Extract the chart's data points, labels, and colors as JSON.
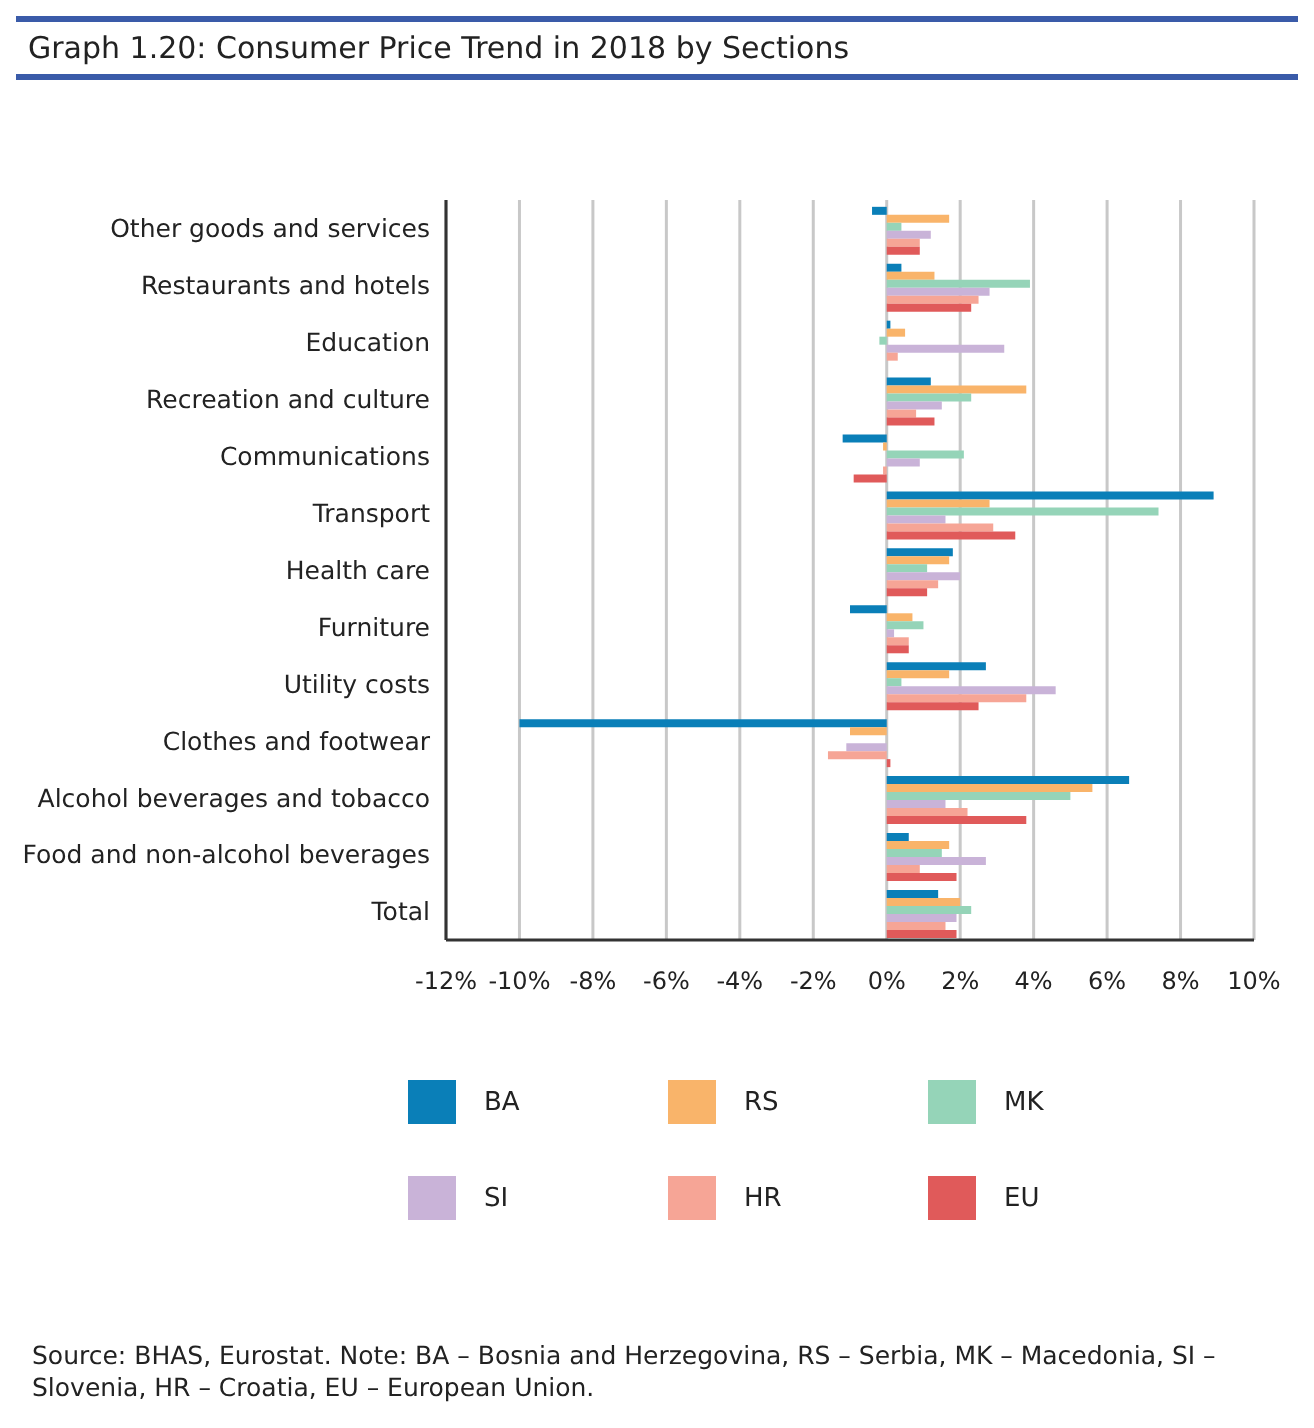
{
  "chart_data": {
    "type": "bar",
    "orientation": "horizontal",
    "title": "Graph 1.20: Consumer Price Trend in 2018 by Sections",
    "categories": [
      "Other goods and services",
      "Restaurants and hotels",
      "Education",
      "Recreation and culture",
      "Communications",
      "Transport",
      "Health care",
      "Furniture",
      "Utility costs",
      "Clothes and footwear",
      "Alcohol beverages and tobacco",
      "Food and non-alcohol beverages",
      "Total"
    ],
    "series": [
      {
        "name": "BA",
        "color": "#0a7fb8",
        "values": [
          -0.4,
          0.4,
          0.1,
          1.2,
          -1.2,
          8.9,
          1.8,
          -1.0,
          2.7,
          -10.0,
          6.6,
          0.6,
          1.4
        ]
      },
      {
        "name": "RS",
        "color": "#f9b46a",
        "values": [
          1.7,
          1.3,
          0.5,
          3.8,
          -0.1,
          2.8,
          1.7,
          0.7,
          1.7,
          -1.0,
          5.6,
          1.7,
          2.0
        ]
      },
      {
        "name": "MK",
        "color": "#95d4b8",
        "values": [
          0.4,
          3.9,
          -0.2,
          2.3,
          2.1,
          7.4,
          1.1,
          1.0,
          0.4,
          0,
          5.0,
          1.5,
          2.3
        ]
      },
      {
        "name": "SI",
        "color": "#c9b3d8",
        "values": [
          1.2,
          2.8,
          3.2,
          1.5,
          0.9,
          1.6,
          2.0,
          0.2,
          4.6,
          -1.1,
          1.6,
          2.7,
          1.9
        ]
      },
      {
        "name": "HR",
        "color": "#f6a596",
        "values": [
          0.9,
          2.5,
          0.3,
          0.8,
          -0.1,
          2.9,
          1.4,
          0.6,
          3.8,
          -1.6,
          2.2,
          0.9,
          1.6
        ]
      },
      {
        "name": "EU",
        "color": "#e05a5a",
        "values": [
          0.9,
          2.3,
          0,
          1.3,
          -0.9,
          3.5,
          1.1,
          0.6,
          2.5,
          0.1,
          3.8,
          1.9,
          1.9
        ]
      }
    ],
    "xlim": [
      -12,
      10
    ],
    "xticks": [
      {
        "value": -12,
        "label": "-12%"
      },
      {
        "value": -10,
        "label": "-10%"
      },
      {
        "value": -8,
        "label": "-8%"
      },
      {
        "value": -6,
        "label": "-6%"
      },
      {
        "value": -4,
        "label": "-4%"
      },
      {
        "value": -2,
        "label": "-2%"
      },
      {
        "value": 0,
        "label": "0%"
      },
      {
        "value": 2,
        "label": "2%"
      },
      {
        "value": 4,
        "label": "4%"
      },
      {
        "value": 6,
        "label": "6%"
      },
      {
        "value": 8,
        "label": "8%"
      },
      {
        "value": 10,
        "label": "10%"
      }
    ],
    "grid": "x",
    "legend": "bottom",
    "annotations": [
      "Source: BHAS, Eurostat. Note: BA – Bosnia and Herzegovina, RS – Serbia, MK – Macedonia, SI – Slovenia, HR – Croatia, EU – European Union."
    ]
  }
}
